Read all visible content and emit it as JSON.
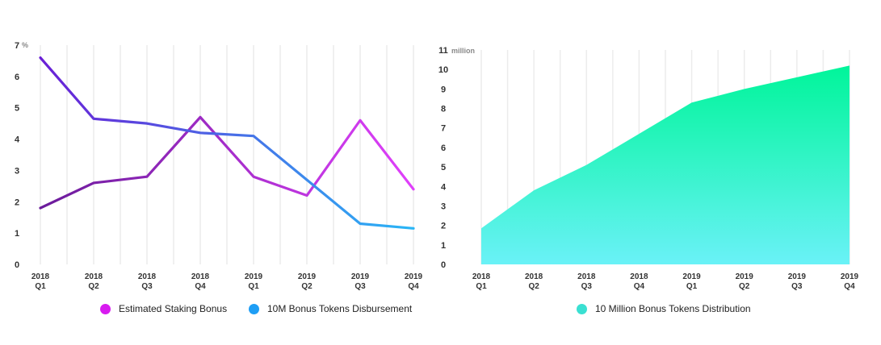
{
  "chart_data": [
    {
      "type": "line",
      "categories": [
        [
          "2018",
          "Q1"
        ],
        [
          "2018",
          "Q2"
        ],
        [
          "2018",
          "Q3"
        ],
        [
          "2018",
          "Q4"
        ],
        [
          "2019",
          "Q1"
        ],
        [
          "2019",
          "Q2"
        ],
        [
          "2019",
          "Q3"
        ],
        [
          "2019",
          "Q4"
        ]
      ],
      "ylim": [
        0,
        7
      ],
      "yticks": [
        0,
        1,
        2,
        3,
        4,
        5,
        6,
        7
      ],
      "y_unit": "%",
      "grid": "vertical",
      "legend_position": "bottom",
      "series": [
        {
          "name": "Estimated Staking Bonus",
          "values": [
            1.8,
            2.6,
            2.8,
            4.7,
            2.8,
            2.2,
            4.6,
            2.4
          ],
          "color_start": "#6a1b9a",
          "color_end": "#e040fb",
          "legend_color": "#d81bf0"
        },
        {
          "name": "10M Bonus Tokens Disbursement",
          "values": [
            6.6,
            4.65,
            4.5,
            4.2,
            4.1,
            2.7,
            1.3,
            1.15
          ],
          "color_start": "#6a1fd6",
          "color_end": "#29b6f6",
          "legend_color": "#1e9ef5"
        }
      ]
    },
    {
      "type": "area",
      "categories": [
        [
          "2018",
          "Q1"
        ],
        [
          "2018",
          "Q2"
        ],
        [
          "2018",
          "Q3"
        ],
        [
          "2018",
          "Q4"
        ],
        [
          "2019",
          "Q1"
        ],
        [
          "2019",
          "Q2"
        ],
        [
          "2019",
          "Q3"
        ],
        [
          "2019",
          "Q4"
        ]
      ],
      "ylim": [
        0,
        11
      ],
      "yticks": [
        0,
        1,
        2,
        3,
        4,
        5,
        6,
        7,
        8,
        9,
        10,
        11
      ],
      "y_unit": "million",
      "grid": "vertical",
      "legend_position": "bottom",
      "series": [
        {
          "name": "10 Million Bonus Tokens Distribution",
          "values": [
            1.85,
            3.8,
            5.1,
            6.7,
            8.3,
            9.0,
            9.6,
            10.2
          ],
          "color_top": "#00f59a",
          "color_bottom": "#6af2f7",
          "legend_color": "#3ae0d2"
        }
      ]
    }
  ]
}
